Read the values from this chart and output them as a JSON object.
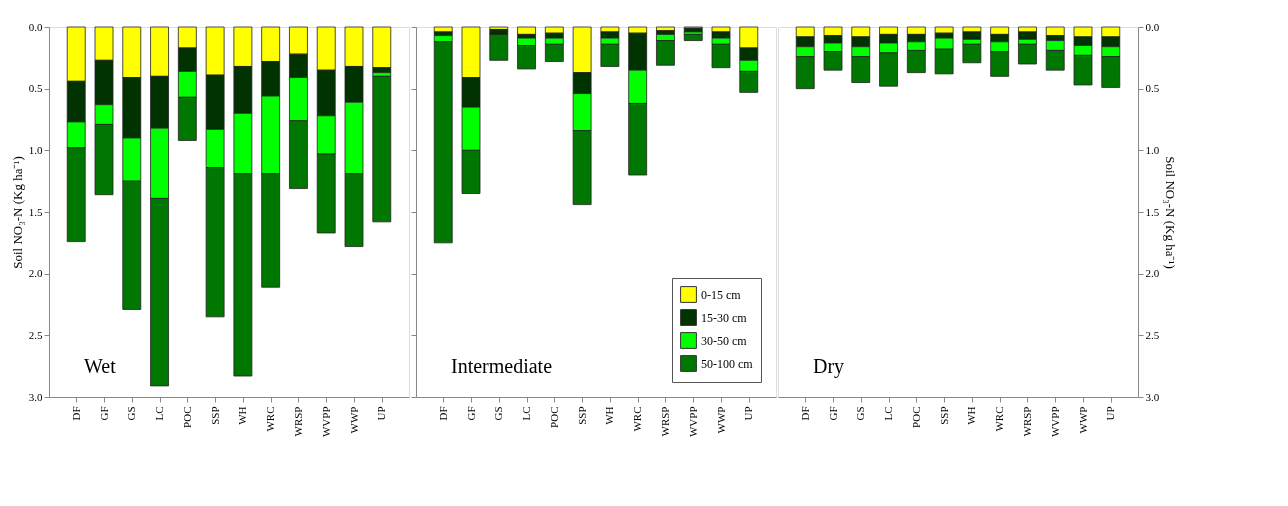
{
  "chart_data": [
    {
      "type": "bar",
      "stacked": true,
      "categories": [
        "DF",
        "GF",
        "GS",
        "LC",
        "POC",
        "SSP",
        "WH",
        "WRC",
        "WRSP",
        "WVPP",
        "WWP",
        "UP"
      ],
      "ylabel": "Soil NO₃-N (Kg ha⁻¹)",
      "annotations": [
        "Wet"
      ],
      "ylim": [
        3.0,
        0.0
      ],
      "yticks": [
        {
          "value": 0,
          "label": "0.0"
        },
        0.5,
        {
          "value": 1,
          "label": "1.0"
        },
        1.5,
        {
          "value": 2,
          "label": "2.0"
        },
        2.5,
        {
          "value": 3,
          "label": "3.0"
        }
      ],
      "legend": false,
      "grid": false,
      "series": [
        {
          "color": "#ffff00",
          "values": [
            0.44,
            0.27,
            0.41,
            0.4,
            0.17,
            0.39,
            0.32,
            0.28,
            0.22,
            0.35,
            0.32,
            0.33
          ]
        },
        {
          "color": "#003300",
          "values": [
            0.33,
            0.36,
            0.49,
            0.42,
            0.19,
            0.44,
            0.38,
            0.28,
            0.19,
            0.37,
            0.29,
            0.04
          ]
        },
        {
          "color": "#00ff00",
          "values": [
            0.21,
            0.16,
            0.35,
            0.57,
            0.21,
            0.31,
            0.49,
            0.63,
            0.35,
            0.31,
            0.58,
            0.03
          ]
        },
        {
          "color": "#007700",
          "values": [
            0.76,
            0.57,
            1.04,
            1.52,
            0.35,
            1.21,
            1.64,
            0.92,
            0.55,
            0.64,
            0.59,
            1.18
          ]
        }
      ]
    },
    {
      "type": "bar",
      "stacked": true,
      "categories": [
        "DF",
        "GF",
        "GS",
        "LC",
        "POC",
        "SSP",
        "WH",
        "WRC",
        "WRSP",
        "WVPP",
        "WWP",
        "UP"
      ],
      "annotations": [
        "Intermediate"
      ],
      "ylim": [
        3.0,
        0.0
      ],
      "yticks": [
        0,
        0.5,
        1,
        1.5,
        2,
        2.5,
        3
      ],
      "tick_labels": "x",
      "legend": "bottom right",
      "grid": false,
      "series": [
        {
          "name": "0-15 cm",
          "color": "#ffff00",
          "values": [
            0.04,
            0.41,
            0.02,
            0.06,
            0.05,
            0.37,
            0.04,
            0.05,
            0.03,
            0.01,
            0.04,
            0.17
          ]
        },
        {
          "name": "15-30 cm",
          "color": "#003300",
          "values": [
            0.03,
            0.24,
            0.04,
            0.03,
            0.04,
            0.17,
            0.05,
            0.3,
            0.03,
            0.03,
            0.05,
            0.1
          ]
        },
        {
          "name": "30-50 cm",
          "color": "#00ff00",
          "values": [
            0.05,
            0.35,
            0,
            0.06,
            0.05,
            0.3,
            0.05,
            0.27,
            0.05,
            0.02,
            0.05,
            0.09
          ]
        },
        {
          "name": "50-100 cm",
          "color": "#007700",
          "values": [
            1.63,
            0.35,
            0.21,
            0.19,
            0.14,
            0.6,
            0.18,
            0.58,
            0.2,
            0.05,
            0.19,
            0.17
          ]
        }
      ]
    },
    {
      "type": "bar",
      "stacked": true,
      "categories": [
        "DF",
        "GF",
        "GS",
        "LC",
        "POC",
        "SSP",
        "WH",
        "WRC",
        "WRSP",
        "WVPP",
        "WWP",
        "UP"
      ],
      "annotations": [
        "Dry"
      ],
      "y2label": "Soil NO₃-N (Kg ha⁻¹)",
      "y2lim": [
        3.0,
        0.0
      ],
      "y2ticks": [
        {
          "value": 0,
          "label": "0.0"
        },
        0.5,
        {
          "value": 1,
          "label": "1.0"
        },
        1.5,
        {
          "value": 2,
          "label": "2.0"
        },
        2.5,
        {
          "value": 3,
          "label": "3.0"
        }
      ],
      "legend": false,
      "grid": false,
      "series": [
        {
          "color": "#ffff00",
          "axis": "y2",
          "values": [
            0.08,
            0.07,
            0.08,
            0.06,
            0.06,
            0.05,
            0.04,
            0.06,
            0.04,
            0.07,
            0.08,
            0.08
          ]
        },
        {
          "color": "#003300",
          "axis": "y2",
          "values": [
            0.08,
            0.06,
            0.08,
            0.07,
            0.06,
            0.04,
            0.06,
            0.06,
            0.06,
            0.04,
            0.07,
            0.08
          ]
        },
        {
          "color": "#00ff00",
          "axis": "y2",
          "values": [
            0.08,
            0.07,
            0.08,
            0.08,
            0.07,
            0.09,
            0.04,
            0.08,
            0.04,
            0.08,
            0.08,
            0.08
          ]
        },
        {
          "color": "#007700",
          "axis": "y2",
          "values": [
            0.26,
            0.15,
            0.21,
            0.27,
            0.18,
            0.2,
            0.15,
            0.2,
            0.16,
            0.16,
            0.24,
            0.25
          ]
        }
      ]
    }
  ]
}
